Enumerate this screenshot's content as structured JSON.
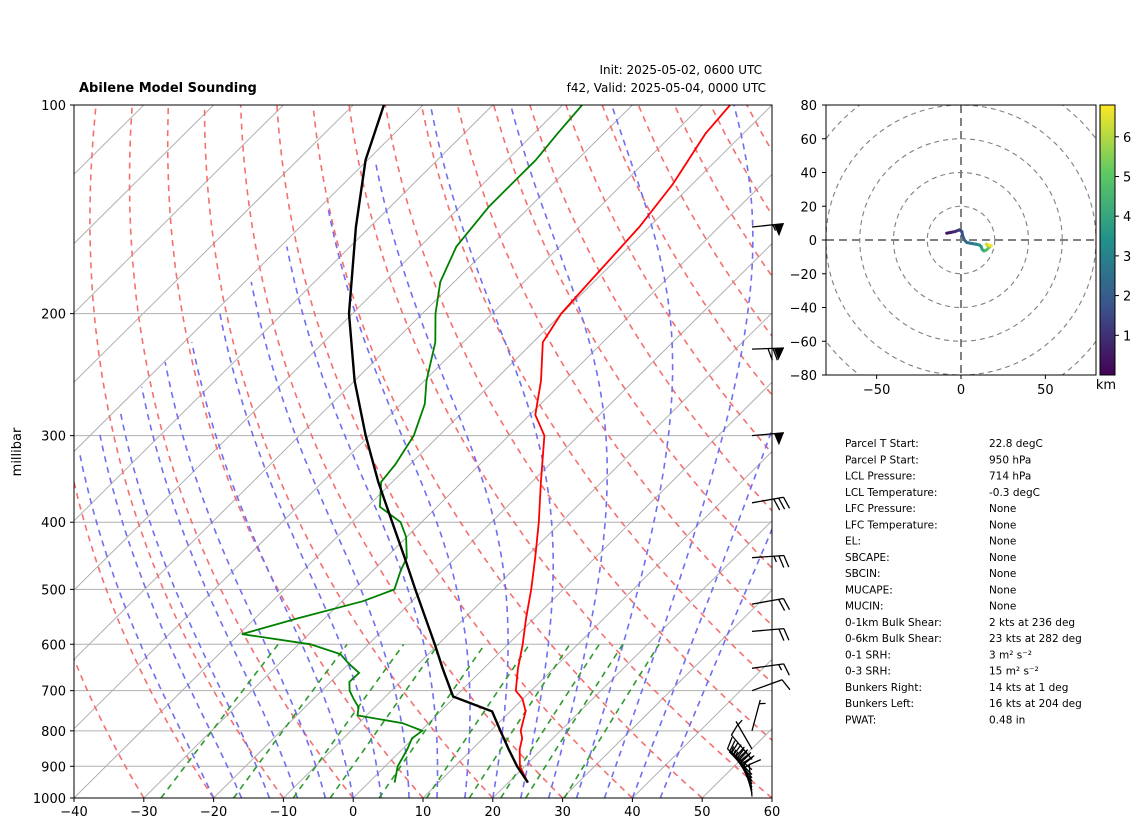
{
  "chart_data": [
    {
      "type": "line",
      "title": "Abilene Model Sounding",
      "init_text": "Init: 2025-05-02, 0600 UTC",
      "valid_text": "f42, Valid: 2025-05-04, 0000 UTC",
      "xlabel": "",
      "ylabel": "millibar",
      "xlim": [
        -40,
        60
      ],
      "ylim": [
        1000,
        100
      ],
      "y_scale": "log",
      "skew": true,
      "xticks": [
        -40,
        -30,
        -20,
        -10,
        0,
        10,
        20,
        30,
        40,
        50,
        60
      ],
      "yticks": [
        1000,
        900,
        800,
        700,
        600,
        500,
        400,
        300,
        200,
        100
      ],
      "grid": true,
      "series": [
        {
          "color": "#ff0000",
          "points": [
            [
              950,
              22.8
            ],
            [
              900,
              19.3
            ],
            [
              850,
              16.8
            ],
            [
              820,
              15.6
            ],
            [
              800,
              14.3
            ],
            [
              750,
              12.2
            ],
            [
              720,
              10.0
            ],
            [
              700,
              7.8
            ],
            [
              650,
              4.9
            ],
            [
              600,
              2.1
            ],
            [
              550,
              -1.2
            ],
            [
              500,
              -4.6
            ],
            [
              450,
              -8.6
            ],
            [
              400,
              -13.2
            ],
            [
              350,
              -18.7
            ],
            [
              300,
              -24.9
            ],
            [
              280,
              -29.2
            ],
            [
              250,
              -33.3
            ],
            [
              220,
              -38.6
            ],
            [
              200,
              -40.1
            ],
            [
              180,
              -40.6
            ],
            [
              150,
              -41.4
            ],
            [
              130,
              -42.8
            ],
            [
              110,
              -45.4
            ],
            [
              100,
              -46.0
            ]
          ]
        },
        {
          "color": "#008000",
          "points": [
            [
              950,
              3.7
            ],
            [
              900,
              1.8
            ],
            [
              850,
              0.7
            ],
            [
              820,
              -0.2
            ],
            [
              800,
              0.2
            ],
            [
              780,
              -3.7
            ],
            [
              760,
              -11.3
            ],
            [
              740,
              -12.3
            ],
            [
              720,
              -14.2
            ],
            [
              700,
              -16.0
            ],
            [
              680,
              -17.3
            ],
            [
              660,
              -17.2
            ],
            [
              640,
              -20.0
            ],
            [
              620,
              -22.6
            ],
            [
              600,
              -28.3
            ],
            [
              580,
              -39.6
            ],
            [
              550,
              -33.8
            ],
            [
              520,
              -27.0
            ],
            [
              500,
              -24.2
            ],
            [
              470,
              -26.0
            ],
            [
              450,
              -27.0
            ],
            [
              420,
              -30.1
            ],
            [
              400,
              -33.0
            ],
            [
              380,
              -38.2
            ],
            [
              350,
              -41.6
            ],
            [
              330,
              -42.1
            ],
            [
              300,
              -43.6
            ],
            [
              270,
              -46.6
            ],
            [
              250,
              -49.7
            ],
            [
              220,
              -54.0
            ],
            [
              200,
              -58.1
            ],
            [
              180,
              -62.0
            ],
            [
              160,
              -64.8
            ],
            [
              140,
              -65.9
            ],
            [
              120,
              -65.9
            ],
            [
              110,
              -66.6
            ],
            [
              100,
              -67.2
            ]
          ]
        },
        {
          "color": "#000000",
          "points": [
            [
              950,
              22.8
            ],
            [
              900,
              18.9
            ],
            [
              850,
              15.2
            ],
            [
              800,
              11.4
            ],
            [
              750,
              7.4
            ],
            [
              714,
              -0.3
            ],
            [
              700,
              -1.5
            ],
            [
              650,
              -5.9
            ],
            [
              600,
              -10.5
            ],
            [
              550,
              -15.6
            ],
            [
              500,
              -21.2
            ],
            [
              450,
              -27.3
            ],
            [
              400,
              -34.2
            ],
            [
              350,
              -42.0
            ],
            [
              300,
              -50.5
            ],
            [
              250,
              -60.0
            ],
            [
              200,
              -70.5
            ],
            [
              150,
              -82.0
            ],
            [
              120,
              -90.3
            ],
            [
              100,
              -95.6
            ]
          ]
        }
      ],
      "wind_barbs": [
        {
          "p": 995,
          "speed_kt": 10,
          "dir_deg": 175
        },
        {
          "p": 985,
          "speed_kt": 15,
          "dir_deg": 165
        },
        {
          "p": 975,
          "speed_kt": 20,
          "dir_deg": 160
        },
        {
          "p": 965,
          "speed_kt": 20,
          "dir_deg": 155
        },
        {
          "p": 955,
          "speed_kt": 20,
          "dir_deg": 150
        },
        {
          "p": 945,
          "speed_kt": 20,
          "dir_deg": 145
        },
        {
          "p": 935,
          "speed_kt": 15,
          "dir_deg": 140
        },
        {
          "p": 925,
          "speed_kt": 15,
          "dir_deg": 135
        },
        {
          "p": 910,
          "speed_kt": 15,
          "dir_deg": 130
        },
        {
          "p": 880,
          "speed_kt": 10,
          "dir_deg": 140
        },
        {
          "p": 850,
          "speed_kt": 5,
          "dir_deg": 150
        },
        {
          "p": 800,
          "speed_kt": 5,
          "dir_deg": 195
        },
        {
          "p": 700,
          "speed_kt": 10,
          "dir_deg": 250
        },
        {
          "p": 650,
          "speed_kt": 15,
          "dir_deg": 262
        },
        {
          "p": 575,
          "speed_kt": 20,
          "dir_deg": 265
        },
        {
          "p": 525,
          "speed_kt": 20,
          "dir_deg": 260
        },
        {
          "p": 450,
          "speed_kt": 25,
          "dir_deg": 266
        },
        {
          "p": 375,
          "speed_kt": 30,
          "dir_deg": 260
        },
        {
          "p": 300,
          "speed_kt": 50,
          "dir_deg": 265
        },
        {
          "p": 225,
          "speed_kt": 70,
          "dir_deg": 268
        },
        {
          "p": 150,
          "speed_kt": 55,
          "dir_deg": 264
        }
      ]
    },
    {
      "type": "line",
      "title": "",
      "xlim": [
        -80,
        80
      ],
      "ylim": [
        -80,
        80
      ],
      "xticks": [
        -50,
        0,
        50
      ],
      "yticks": [
        80,
        60,
        40,
        20,
        0,
        -20,
        -40,
        -60,
        -80
      ],
      "ring_interval": 20,
      "colorbar": {
        "label": "km",
        "range": [
          0,
          6.8
        ],
        "ticks": [
          1,
          2,
          3,
          4,
          5,
          6
        ],
        "colormap": "viridis"
      },
      "series": [
        {
          "u": [
            -8.5,
            -6.0,
            -3.5,
            -1.0,
            0.5,
            1.0,
            2.0,
            3.5,
            6.0,
            9.0,
            11.0,
            12.0,
            12.5,
            13.5,
            15.0,
            16.0,
            17.0,
            16.0,
            15.0,
            16.5,
            18.0
          ],
          "v": [
            4.0,
            4.5,
            5.0,
            6.0,
            5.0,
            2.5,
            0.0,
            -1.5,
            -2.0,
            -2.5,
            -3.0,
            -4.0,
            -5.5,
            -6.5,
            -6.0,
            -5.0,
            -4.0,
            -3.5,
            -2.5,
            -3.0,
            -3.5
          ],
          "z_km": [
            0.05,
            0.4,
            0.7,
            1.0,
            1.3,
            1.6,
            1.9,
            2.2,
            2.5,
            2.8,
            3.1,
            3.4,
            3.7,
            4.0,
            4.3,
            4.7,
            5.0,
            5.4,
            5.8,
            6.2,
            6.7
          ]
        }
      ]
    }
  ],
  "parameters": [
    {
      "label": "Parcel T Start:",
      "value": "22.8 degC"
    },
    {
      "label": "Parcel P Start:",
      "value": "950 hPa"
    },
    {
      "label": "LCL Pressure:",
      "value": "714 hPa"
    },
    {
      "label": "LCL Temperature:",
      "value": "-0.3 degC"
    },
    {
      "label": "LFC Pressure:",
      "value": "None"
    },
    {
      "label": "LFC Temperature:",
      "value": "None"
    },
    {
      "label": "EL:",
      "value": "None"
    },
    {
      "label": "SBCAPE:",
      "value": "None"
    },
    {
      "label": "SBCIN:",
      "value": "None"
    },
    {
      "label": "MUCAPE:",
      "value": "None"
    },
    {
      "label": "MUCIN:",
      "value": "None"
    },
    {
      "label": "0-1km Bulk Shear:",
      "value": "2 kts at 236 deg"
    },
    {
      "label": "0-6km Bulk Shear:",
      "value": "23 kts at 282 deg"
    },
    {
      "label": "0-1 SRH:",
      "value": "3 m² s⁻²"
    },
    {
      "label": "0-3 SRH:",
      "value": "15 m² s⁻²"
    },
    {
      "label": "Bunkers Right:",
      "value": "14 kts at 1 deg"
    },
    {
      "label": "Bunkers Left:",
      "value": "16 kts at 204 deg"
    },
    {
      "label": "PWAT:",
      "value": "0.48 in"
    }
  ]
}
